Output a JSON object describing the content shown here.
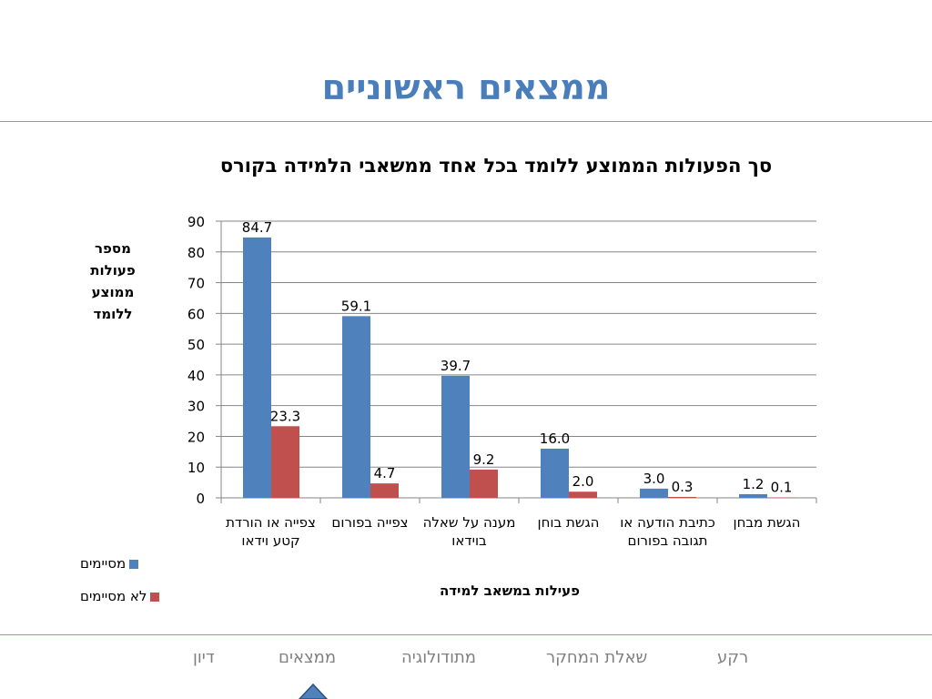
{
  "slide": {
    "title": "ממצאים ראשוניים"
  },
  "colors": {
    "title": "#4a7ebb",
    "series_1": "#4f81bd",
    "series_2": "#c0504d",
    "rule": "#7aa0c6",
    "nav_text": "#808080"
  },
  "chart_data": {
    "type": "bar",
    "title": "סך הפעולות הממוצע ללומד בכל אחד ממשאבי הלמידה בקורס",
    "xlabel": "פעילות במשאב למידה",
    "ylabel": "מספר פעולות ממוצע ללומד",
    "ylim": [
      0,
      90
    ],
    "yticks": [
      0,
      10,
      20,
      30,
      40,
      50,
      60,
      70,
      80,
      90
    ],
    "grid": true,
    "legend_position": "bottom-left",
    "categories": [
      "צפייה או הורדת קטע וידאו",
      "צפייה בפורום",
      "מענה על שאלה בוידאו",
      "הגשת בוחן",
      "כתיבת הודעה או תגובה בפורום",
      "הגשת מבחן"
    ],
    "series": [
      {
        "name": "מסיימים",
        "values": [
          84.7,
          59.1,
          39.7,
          16.0,
          3.0,
          1.2
        ],
        "labels": [
          "84.7",
          "59.1",
          "39.7",
          "16.0",
          "3.0",
          "1.2"
        ]
      },
      {
        "name": "לא מסיימים",
        "values": [
          23.3,
          4.7,
          9.2,
          2.0,
          0.3,
          0.1
        ],
        "labels": [
          "23.3",
          "4.7",
          "9.2",
          "2.0",
          "0.3",
          "0.1"
        ]
      }
    ]
  },
  "nav": {
    "items": [
      {
        "label": "רקע"
      },
      {
        "label": "שאלת המחקר"
      },
      {
        "label": "מתודולוגיה"
      },
      {
        "label": "ממצאים",
        "active": true
      },
      {
        "label": "דיון"
      }
    ]
  }
}
